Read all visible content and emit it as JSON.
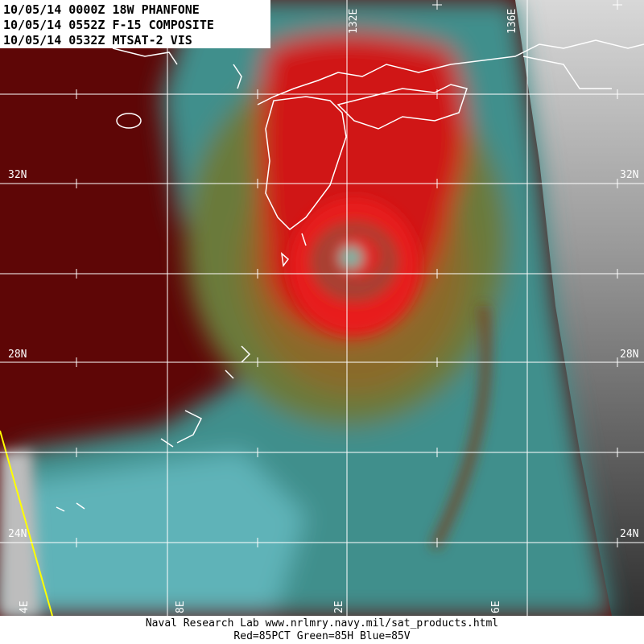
{
  "header": {
    "lines": [
      "10/05/14 0000Z 18W PHANFONE",
      "10/05/14 0552Z F-15 COMPOSITE",
      "10/05/14 0532Z MTSAT-2 VIS"
    ]
  },
  "grid": {
    "left_labels": [
      "32N",
      "28N",
      "24N"
    ],
    "right_labels": [
      "32N",
      "28N",
      "24N"
    ],
    "top_labels": [
      "132E",
      "136E"
    ],
    "bottom_labels": [
      "4E",
      "8E",
      "2E",
      "6E"
    ]
  },
  "footer": {
    "lines": [
      "Naval Research Lab  www.nrlmry.navy.mil/sat_products.html",
      "Red=85PCT  Green=85H  Blue=85V"
    ]
  }
}
